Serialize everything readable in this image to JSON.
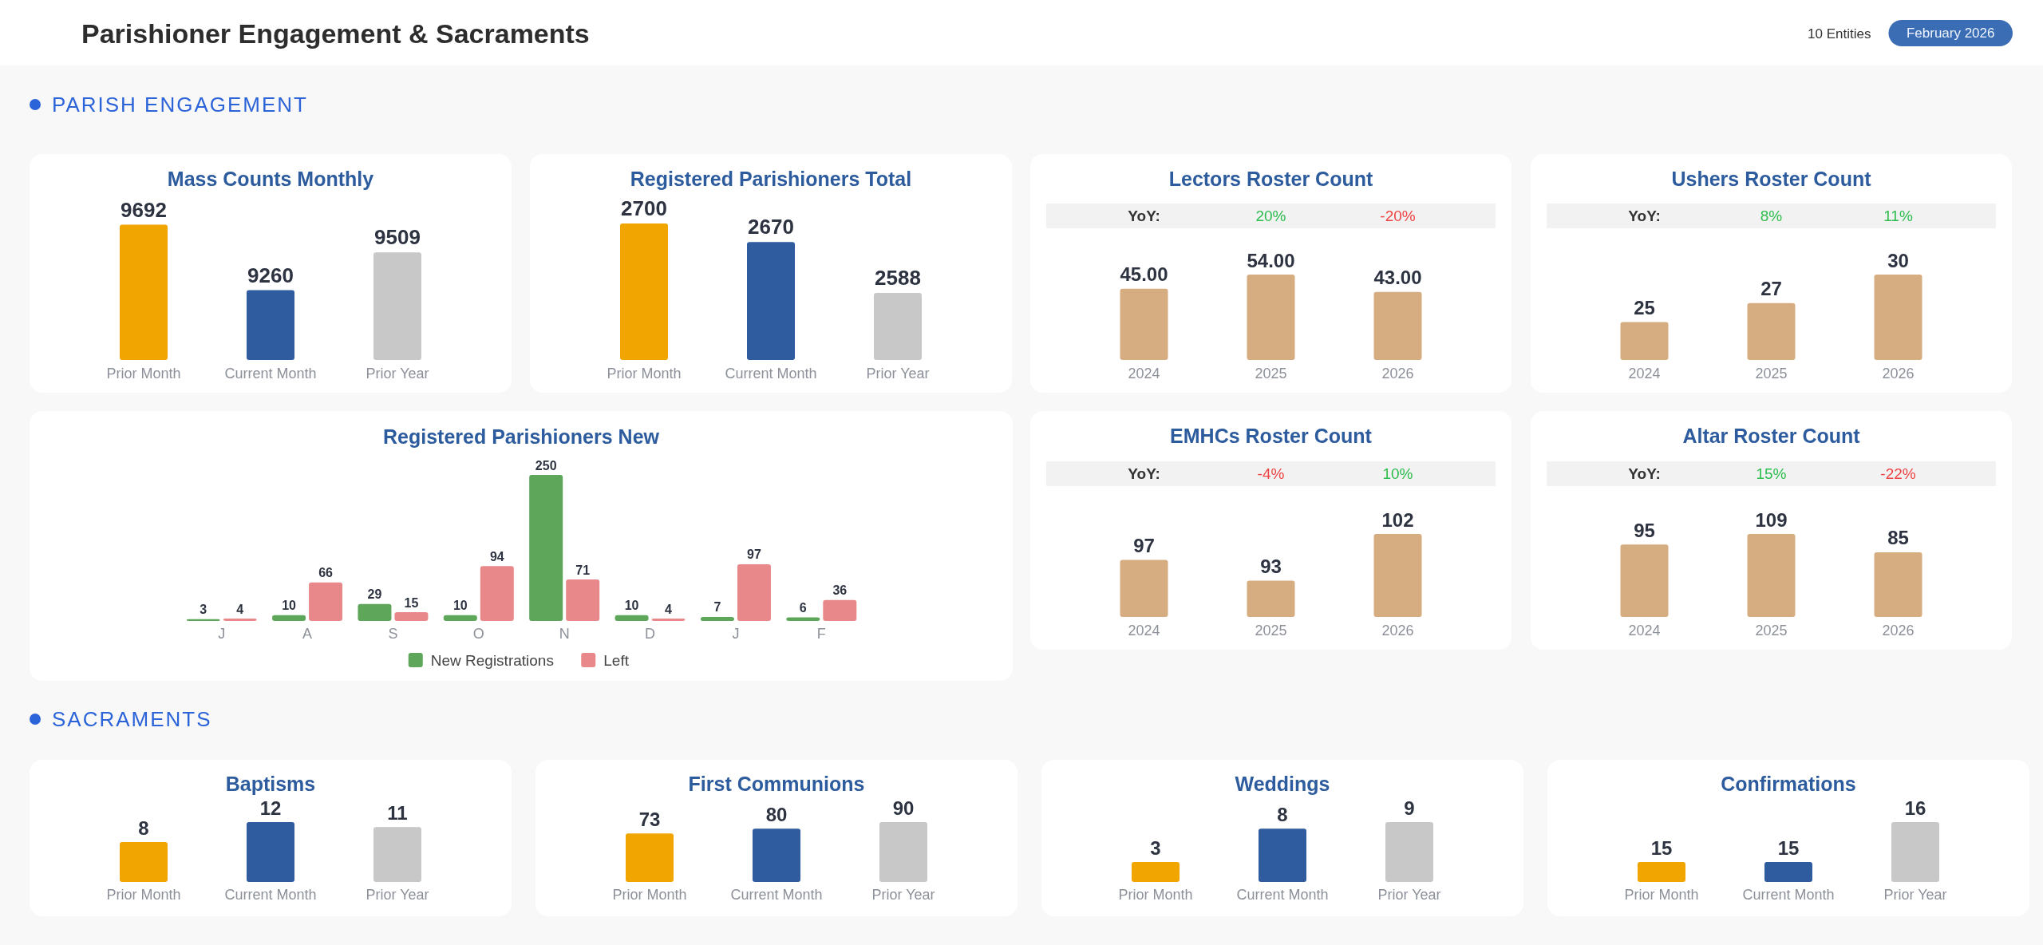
{
  "chart_data": [
    {
      "type": "other",
      "title": "Parishioner Engagement & Sacraments",
      "annotations": [
        "10 Entities",
        "February 2026"
      ]
    },
    {
      "type": "other",
      "title": "PARISH ENGAGEMENT"
    },
    {
      "type": "bar",
      "title": "Mass Counts Monthly",
      "categories": [
        "Prior Month",
        "Current Month",
        "Prior Year"
      ],
      "values": [
        9692,
        9260,
        9509
      ],
      "colors": [
        "#f0a500",
        "#2e5c9e",
        "#c8c8c8"
      ],
      "ylim": [
        8800,
        9700
      ],
      "data_labels": true,
      "tick_labels": "x"
    },
    {
      "type": "bar",
      "title": "Registered Parishioners Total",
      "categories": [
        "Prior Month",
        "Current Month",
        "Prior Year"
      ],
      "values": [
        2700,
        2670,
        2588
      ],
      "colors": [
        "#f0a500",
        "#2e5c9e",
        "#c8c8c8"
      ],
      "ylim": [
        2480,
        2700
      ],
      "data_labels": true,
      "tick_labels": "x"
    },
    {
      "type": "bar",
      "title": "Lectors Roster Count",
      "categories": [
        "2024",
        "2025",
        "2026"
      ],
      "values": [
        45,
        54,
        43
      ],
      "color": "#d6ad80",
      "value_labels": [
        "45.00",
        "54.00",
        "43.00"
      ],
      "annotations": [
        "YoY:",
        "20%",
        "-20%"
      ],
      "ylim": [
        0,
        54
      ],
      "tick_labels": "x"
    },
    {
      "type": "bar",
      "title": "Ushers Roster Count",
      "categories": [
        "2024",
        "2025",
        "2026"
      ],
      "values": [
        25,
        27,
        30
      ],
      "color": "#d6ad80",
      "data_labels": true,
      "annotations": [
        "YoY:",
        "8%",
        "11%"
      ],
      "ylim": [
        21,
        30
      ],
      "tick_labels": "x"
    },
    {
      "type": "bar",
      "title": "Registered Parishioners New",
      "categories": [
        "J",
        "A",
        "S",
        "O",
        "N",
        "D",
        "J",
        "F"
      ],
      "series": [
        {
          "name": "New Registrations",
          "color": "#5da65a",
          "values": [
            3,
            10,
            29,
            10,
            250,
            10,
            7,
            6
          ]
        },
        {
          "name": "Left",
          "color": "#e8888a",
          "values": [
            4,
            66,
            15,
            94,
            71,
            4,
            97,
            36
          ]
        }
      ],
      "ylim": [
        0,
        250
      ],
      "data_labels": true,
      "legend": "bottom",
      "tick_labels": "x"
    },
    {
      "type": "bar",
      "title": "EMHCs Roster Count",
      "categories": [
        "2024",
        "2025",
        "2026"
      ],
      "values": [
        97,
        93,
        102
      ],
      "color": "#d6ad80",
      "data_labels": true,
      "annotations": [
        "YoY:",
        "-4%",
        "10%"
      ],
      "ylim": [
        86,
        102
      ],
      "tick_labels": "x"
    },
    {
      "type": "bar",
      "title": "Altar Roster Count",
      "categories": [
        "2024",
        "2025",
        "2026"
      ],
      "values": [
        95,
        109,
        85
      ],
      "color": "#d6ad80",
      "data_labels": true,
      "annotations": [
        "YoY:",
        "15%",
        "-22%"
      ],
      "ylim": [
        0,
        109
      ],
      "tick_labels": "x"
    },
    {
      "type": "other",
      "title": "SACRAMENTS"
    },
    {
      "type": "bar",
      "title": "Baptisms",
      "categories": [
        "Prior Month",
        "Current Month",
        "Prior Year"
      ],
      "values": [
        8,
        12,
        11
      ],
      "colors": [
        "#f0a500",
        "#2e5c9e",
        "#c8c8c8"
      ],
      "ylim": [
        0,
        12
      ],
      "data_labels": true,
      "tick_labels": "x"
    },
    {
      "type": "bar",
      "title": "First Communions",
      "categories": [
        "Prior Month",
        "Current Month",
        "Prior Year"
      ],
      "values": [
        73,
        80,
        90
      ],
      "colors": [
        "#f0a500",
        "#2e5c9e",
        "#c8c8c8"
      ],
      "ylim": [
        0,
        90
      ],
      "data_labels": true,
      "tick_labels": "x"
    },
    {
      "type": "bar",
      "title": "Weddings",
      "categories": [
        "Prior Month",
        "Current Month",
        "Prior Year"
      ],
      "values": [
        3,
        8,
        9
      ],
      "colors": [
        "#f0a500",
        "#2e5c9e",
        "#c8c8c8"
      ],
      "ylim": [
        0,
        9
      ],
      "data_labels": true,
      "tick_labels": "x"
    },
    {
      "type": "bar",
      "title": "Confirmations",
      "categories": [
        "Prior Month",
        "Current Month",
        "Prior Year"
      ],
      "values": [
        15,
        15,
        16
      ],
      "colors": [
        "#f0a500",
        "#2e5c9e",
        "#c8c8c8"
      ],
      "ylim": [
        14.5,
        16
      ],
      "data_labels": true,
      "tick_labels": "x"
    }
  ]
}
